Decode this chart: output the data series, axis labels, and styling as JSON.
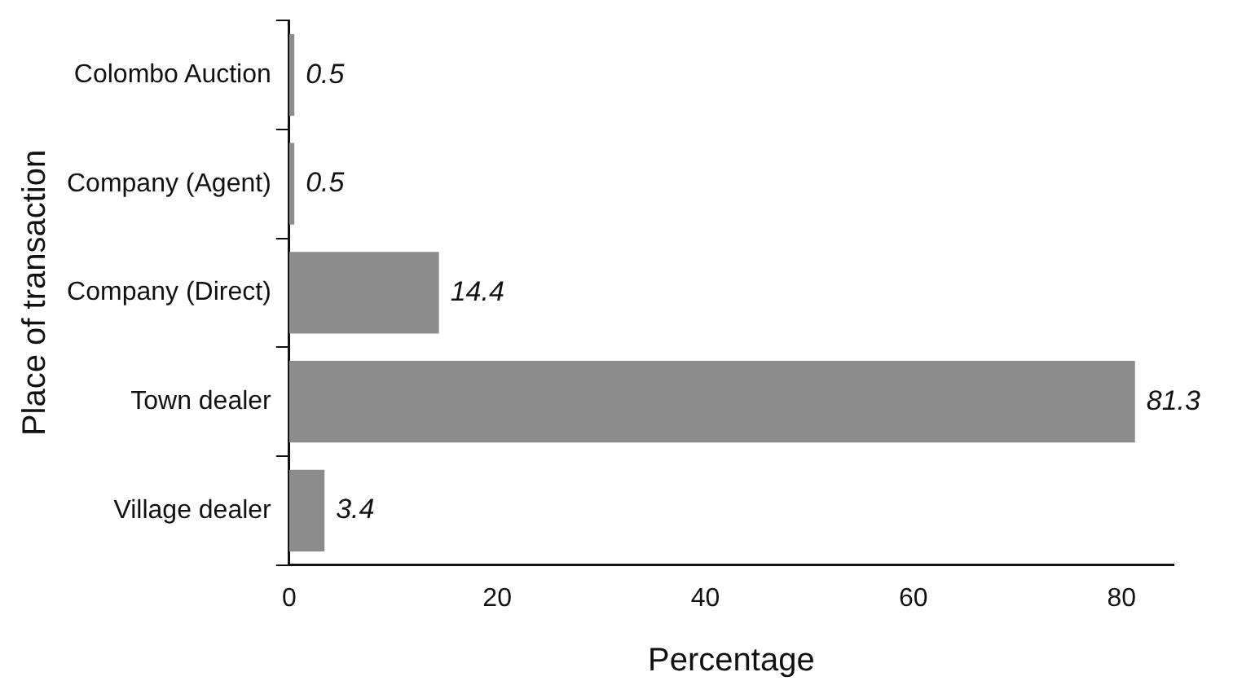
{
  "chart_data": {
    "type": "bar",
    "orientation": "horizontal",
    "xlabel": "Percentage",
    "ylabel": "Place of transaction",
    "categories": [
      "Colombo Auction",
      "Company (Agent)",
      "Company (Direct)",
      "Town dealer",
      "Village dealer"
    ],
    "values": [
      0.5,
      0.5,
      14.4,
      81.3,
      3.4
    ],
    "color": "#8c8c8c",
    "xlim": [
      0,
      85
    ],
    "xticks": [
      0,
      20,
      40,
      60,
      80
    ],
    "grid": false,
    "legend": false,
    "data_labels": true
  }
}
